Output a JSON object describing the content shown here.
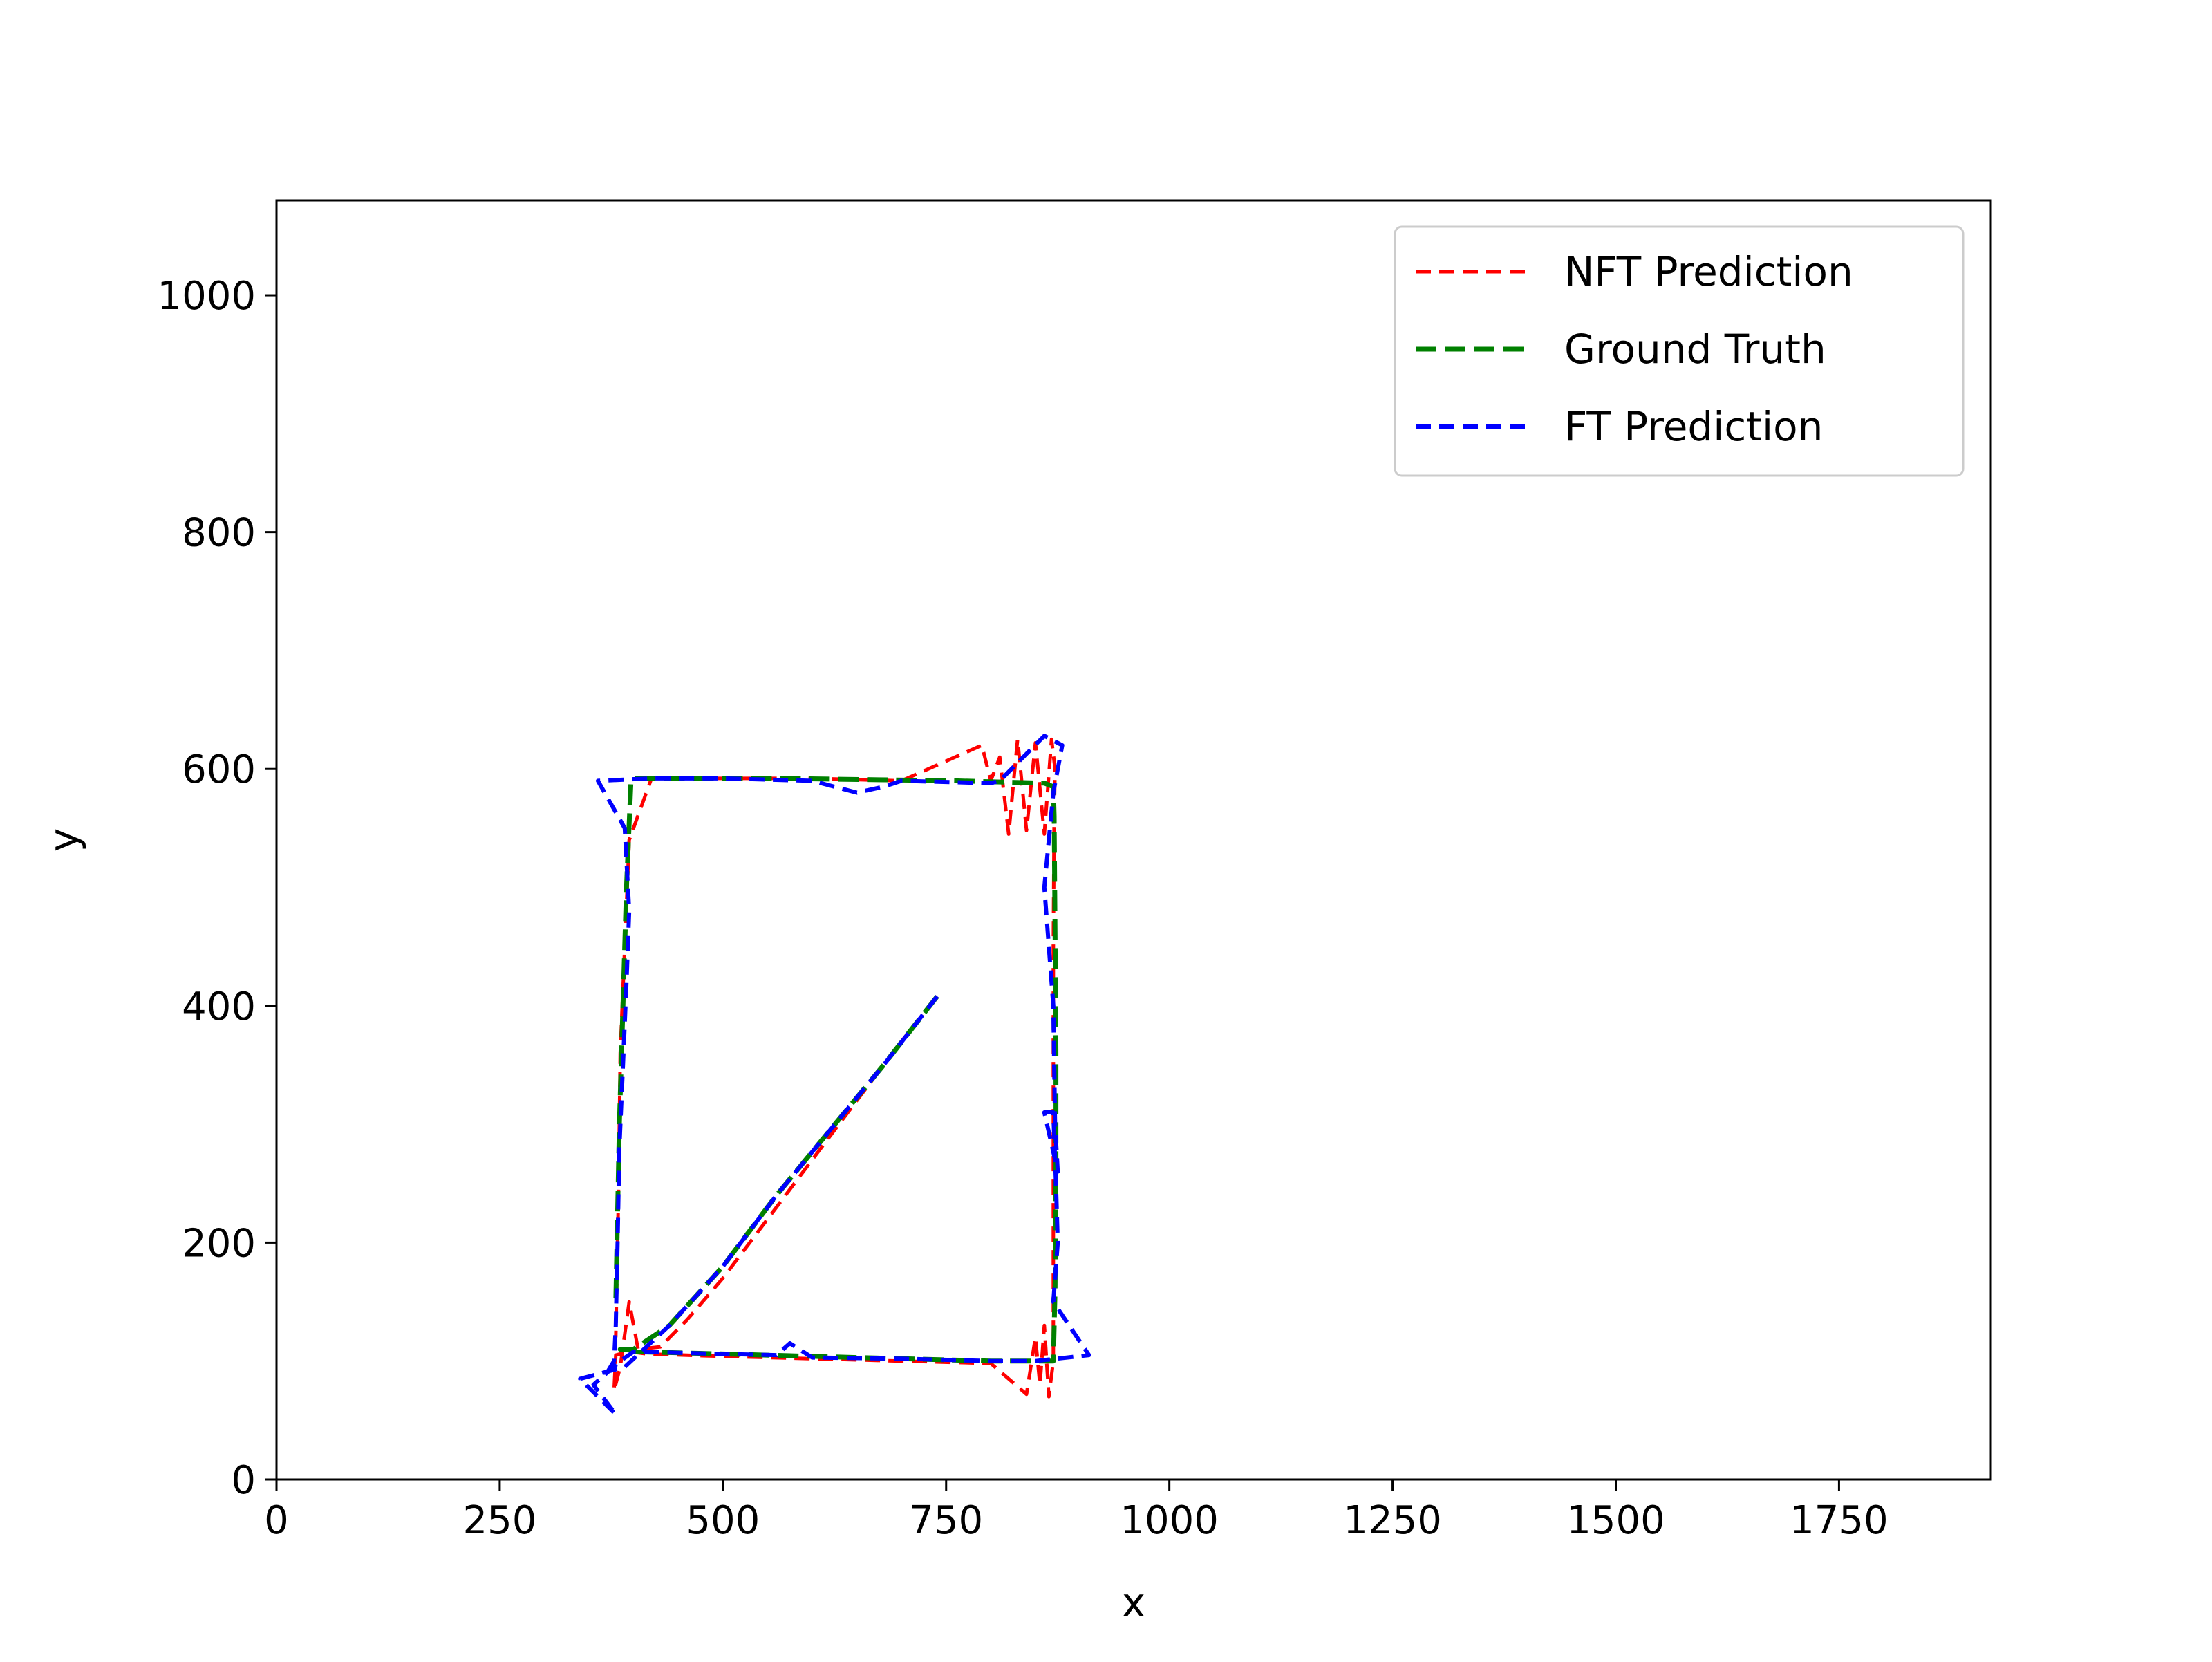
{
  "chart_data": {
    "type": "line",
    "title": "",
    "xlabel": "x",
    "ylabel": "y",
    "xlim": [
      0,
      1920
    ],
    "ylim": [
      0,
      1080
    ],
    "xticks": [
      0,
      250,
      500,
      750,
      1000,
      1250,
      1500,
      1750
    ],
    "yticks": [
      0,
      200,
      400,
      600,
      800,
      1000
    ],
    "grid": false,
    "legend_position": "top-right",
    "series": [
      {
        "name": "NFT Prediction",
        "color": "#ff0000",
        "style": "dashed",
        "x": [
          740,
          700,
          660,
          620,
          580,
          540,
          500,
          460,
          430,
          405,
          395,
          385,
          378,
          380,
          395,
          415,
          500,
          600,
          700,
          800,
          840,
          850,
          855,
          860,
          865,
          870,
          870,
          870,
          870,
          871,
          872,
          868,
          860,
          850,
          840,
          830,
          820,
          810,
          800,
          790,
          700,
          600,
          500,
          420,
          395,
          390,
          385,
          383,
          380
        ],
        "y": [
          408,
          370,
          330,
          290,
          250,
          210,
          170,
          135,
          112,
          110,
          150,
          95,
          75,
          105,
          108,
          106,
          104,
          102,
          100,
          98,
          72,
          120,
          80,
          130,
          70,
          100,
          150,
          300,
          450,
          560,
          600,
          625,
          545,
          622,
          548,
          625,
          545,
          610,
          590,
          620,
          590,
          592,
          592,
          592,
          540,
          450,
          360,
          240,
          120
        ]
      },
      {
        "name": "Ground Truth",
        "color": "#008000",
        "style": "dashed",
        "x": [
          740,
          680,
          620,
          560,
          500,
          440,
          400,
          385,
          395,
          500,
          600,
          700,
          800,
          870,
          872,
          873,
          873,
          872,
          871,
          870,
          860,
          760,
          660,
          560,
          460,
          400,
          397,
          392,
          388,
          384,
          380
        ],
        "y": [
          408,
          350,
          295,
          240,
          180,
          130,
          110,
          110,
          108,
          106,
          104,
          102,
          100,
          100,
          160,
          260,
          360,
          460,
          560,
          585,
          588,
          590,
          591,
          592,
          592,
          592,
          590,
          500,
          400,
          300,
          150
        ]
      },
      {
        "name": "FT Prediction",
        "color": "#0000ff",
        "style": "dashed",
        "x": [
          740,
          680,
          620,
          560,
          500,
          440,
          390,
          340,
          380,
          355,
          385,
          400,
          500,
          560,
          575,
          600,
          700,
          800,
          850,
          910,
          870,
          875,
          873,
          870,
          860,
          875,
          872,
          870,
          860,
          870,
          880,
          860,
          810,
          800,
          700,
          680,
          650,
          600,
          500,
          420,
          360,
          390,
          395,
          392,
          388,
          384,
          382,
          380,
          378,
          370
        ],
        "y": [
          408,
          350,
          295,
          240,
          180,
          130,
          95,
          85,
          55,
          80,
          100,
          108,
          106,
          105,
          115,
          103,
          102,
          100,
          100,
          105,
          150,
          200,
          250,
          310,
          310,
          260,
          300,
          400,
          500,
          580,
          620,
          628,
          590,
          588,
          590,
          585,
          580,
          590,
          592,
          592,
          590,
          550,
          480,
          420,
          350,
          280,
          200,
          130,
          100,
          90
        ]
      }
    ]
  }
}
